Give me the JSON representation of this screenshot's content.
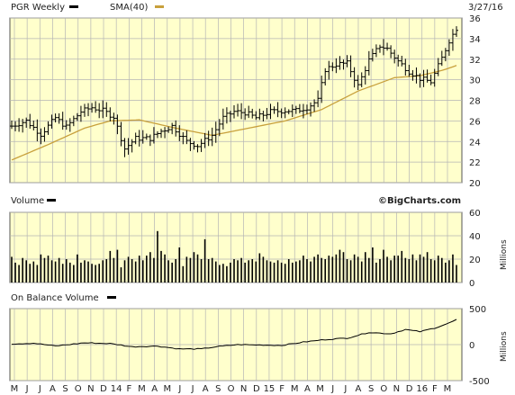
{
  "header": {
    "ticker_label": "PGR Weekly",
    "sma_label": "SMA(40)",
    "date": "3/27/16"
  },
  "colors": {
    "panel_bg": "#ffffcc",
    "grid": "#b5b5b5",
    "bars": "#000000",
    "sma": "#c8a03c",
    "frame": "#555555"
  },
  "watermark": "©BigCharts.com",
  "x_axis_labels": [
    "M",
    "J",
    "J",
    "A",
    "S",
    "O",
    "N",
    "D",
    "14",
    "F",
    "M",
    "A",
    "M",
    "J",
    "J",
    "A",
    "S",
    "O",
    "N",
    "D",
    "15",
    "F",
    "M",
    "A",
    "M",
    "J",
    "J",
    "A",
    "S",
    "O",
    "N",
    "D",
    "16",
    "F",
    "M"
  ],
  "chart_data": [
    {
      "type": "ohlc",
      "ticker": "PGR",
      "interval": "Weekly",
      "ylim": [
        20,
        36
      ],
      "yticks": [
        20,
        22,
        24,
        26,
        28,
        30,
        32,
        34,
        36
      ],
      "close_anchors": [
        [
          0,
          25.5
        ],
        [
          4,
          26.0
        ],
        [
          8,
          24.7
        ],
        [
          12,
          26.3
        ],
        [
          15,
          25.4
        ],
        [
          19,
          26.9
        ],
        [
          22,
          27.3
        ],
        [
          25,
          27.0
        ],
        [
          28,
          26.4
        ],
        [
          31,
          23.3
        ],
        [
          34,
          24.3
        ],
        [
          38,
          24.3
        ],
        [
          41,
          25.0
        ],
        [
          44,
          25.5
        ],
        [
          48,
          24.0
        ],
        [
          51,
          23.6
        ],
        [
          55,
          24.6
        ],
        [
          58,
          26.3
        ],
        [
          61,
          26.9
        ],
        [
          64,
          26.8
        ],
        [
          67,
          26.3
        ],
        [
          71,
          26.9
        ],
        [
          75,
          27.0
        ],
        [
          78,
          27.0
        ],
        [
          81,
          27.3
        ],
        [
          84,
          28.0
        ],
        [
          86,
          31.0
        ],
        [
          89,
          31.5
        ],
        [
          92,
          31.6
        ],
        [
          95,
          29.4
        ],
        [
          98,
          31.9
        ],
        [
          101,
          33.3
        ],
        [
          103,
          33.0
        ],
        [
          106,
          31.8
        ],
        [
          109,
          30.8
        ],
        [
          112,
          30.1
        ],
        [
          115,
          29.8
        ],
        [
          118,
          32.1
        ],
        [
          120,
          33.8
        ],
        [
          122,
          35.0
        ]
      ],
      "sma_anchors": [
        [
          0,
          22.2
        ],
        [
          10,
          23.7
        ],
        [
          20,
          25.3
        ],
        [
          27,
          26.0
        ],
        [
          35,
          26.1
        ],
        [
          45,
          25.3
        ],
        [
          55,
          24.6
        ],
        [
          65,
          25.3
        ],
        [
          75,
          26.0
        ],
        [
          85,
          27.1
        ],
        [
          95,
          28.9
        ],
        [
          105,
          30.2
        ],
        [
          112,
          30.4
        ],
        [
          118,
          30.9
        ],
        [
          123,
          31.5
        ]
      ],
      "sma_name": "SMA(40)"
    },
    {
      "type": "bar",
      "title": "Volume",
      "ylabel": "Millions",
      "ylim": [
        0,
        60
      ],
      "yticks": [
        0,
        20,
        40,
        60
      ],
      "values": [
        22,
        17,
        15,
        21,
        19,
        16,
        18,
        15,
        24,
        21,
        23,
        19,
        18,
        21,
        16,
        20,
        17,
        15,
        24,
        17,
        19,
        18,
        16,
        15,
        16,
        19,
        20,
        27,
        21,
        28,
        13,
        19,
        22,
        20,
        18,
        23,
        19,
        23,
        26,
        21,
        44,
        27,
        24,
        19,
        17,
        20,
        30,
        14,
        22,
        21,
        26,
        24,
        20,
        37,
        20,
        21,
        18,
        15,
        16,
        14,
        17,
        20,
        19,
        21,
        17,
        19,
        20,
        18,
        25,
        22,
        19,
        18,
        17,
        19,
        17,
        16,
        20,
        17,
        18,
        19,
        23,
        20,
        18,
        22,
        24,
        21,
        20,
        23,
        22,
        24,
        28,
        26,
        20,
        19,
        24,
        22,
        18,
        26,
        21,
        30,
        17,
        20,
        28,
        22,
        19,
        23,
        23,
        27,
        21,
        20,
        24,
        19,
        24,
        22,
        26,
        20,
        19,
        23,
        21,
        17,
        19,
        24,
        15
      ]
    },
    {
      "type": "line",
      "title": "On Balance Volume",
      "ylabel": "Millions",
      "ylim": [
        -500,
        500
      ],
      "yticks": [
        -500,
        0,
        500
      ],
      "anchors": [
        [
          0,
          10
        ],
        [
          6,
          20
        ],
        [
          12,
          -20
        ],
        [
          20,
          25
        ],
        [
          27,
          15
        ],
        [
          33,
          -30
        ],
        [
          40,
          -20
        ],
        [
          46,
          -60
        ],
        [
          52,
          -60
        ],
        [
          56,
          -30
        ],
        [
          62,
          0
        ],
        [
          68,
          -5
        ],
        [
          74,
          -10
        ],
        [
          80,
          35
        ],
        [
          86,
          70
        ],
        [
          92,
          90
        ],
        [
          98,
          170
        ],
        [
          104,
          150
        ],
        [
          108,
          210
        ],
        [
          112,
          180
        ],
        [
          116,
          230
        ],
        [
          120,
          300
        ],
        [
          123,
          370
        ]
      ]
    }
  ]
}
